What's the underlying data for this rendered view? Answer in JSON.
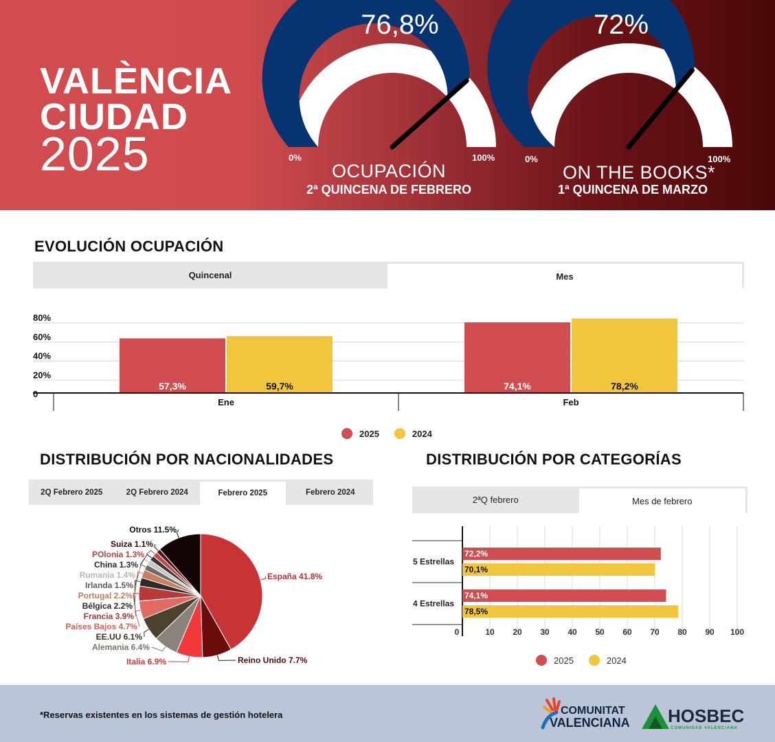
{
  "header": {
    "title_line1": "VALÈNCIA",
    "title_line2": "CIUDAD",
    "title_year": "2025"
  },
  "gauges": [
    {
      "value_label": "76,8%",
      "value": 76.8,
      "min_label": "0%",
      "max_label": "100%",
      "title": "OCUPACIÓN",
      "subtitle": "2ª QUINCENA DE FEBRERO"
    },
    {
      "value_label": "72%",
      "value": 72,
      "min_label": "0%",
      "max_label": "100%",
      "title": "ON THE BOOKS*",
      "subtitle": "1ª QUINCENA DE MARZO"
    }
  ],
  "colors": {
    "y2025": "#d14d50",
    "y2024": "#f2c63c",
    "gauge_fill": "#053470"
  },
  "evolucion": {
    "title": "EVOLUCIÓN OCUPACIÓN",
    "tabs": [
      "Quincenal",
      "Mes"
    ],
    "active_tab": "Mes",
    "legend": [
      "2025",
      "2024"
    ]
  },
  "nacionalidades": {
    "title": "DISTRIBUCIÓN POR NACIONALIDADES",
    "tabs": [
      "2Q Febrero 2025",
      "2Q Febrero 2024",
      "Febrero 2025",
      "Febrero 2024"
    ],
    "active_tab": "Febrero 2025"
  },
  "categorias": {
    "title": "DISTRIBUCIÓN POR CATEGORÍAS",
    "tabs": [
      "2ªQ febrero",
      "Mes de febrero"
    ],
    "active_tab": "Mes de febrero",
    "legend": [
      "2025",
      "2024"
    ]
  },
  "footer": {
    "note": "*Reservas existentes en los sistemas de gestión hotelera"
  },
  "logos": {
    "cv_line1": "COMUNITAT",
    "cv_line2": "VALENCIANA",
    "hosbec_name": "HOSBEC",
    "hosbec_sub": "COMUNIDAD VALENCIANA"
  },
  "chart_data": [
    {
      "type": "bar",
      "title": "EVOLUCIÓN OCUPACIÓN",
      "categories": [
        "Ene",
        "Feb"
      ],
      "series": [
        {
          "name": "2025",
          "values": [
            57.3,
            74.1
          ],
          "labels": [
            "57,3%",
            "74,1%"
          ]
        },
        {
          "name": "2024",
          "values": [
            59.7,
            78.2
          ],
          "labels": [
            "59,7%",
            "78,2%"
          ]
        }
      ],
      "y_ticks": [
        "0",
        "20%",
        "40%",
        "60%",
        "80%"
      ],
      "ylim": [
        0,
        80
      ],
      "grid": true,
      "legend_position": "bottom"
    },
    {
      "type": "pie",
      "title": "DISTRIBUCIÓN POR NACIONALIDADES",
      "slices": [
        {
          "label": "España",
          "value": 41.8,
          "text": "España 41.8%",
          "color": "#c83336",
          "label_color": "#c62d30"
        },
        {
          "label": "Reino Unido",
          "value": 7.7,
          "text": "Reino Unido 7.7%",
          "color": "#6b0d0d",
          "label_color": "#5a0a0a"
        },
        {
          "label": "Italia",
          "value": 6.9,
          "text": "Italia 6.9%",
          "color": "#f2383b",
          "label_color": "#e53234"
        },
        {
          "label": "Alemania",
          "value": 6.4,
          "text": "Alemania 6.4%",
          "color": "#8a837c",
          "label_color": "#7a746e"
        },
        {
          "label": "EE.UU",
          "value": 6.1,
          "text": "EE.UU 6.1%",
          "color": "#4d4230",
          "label_color": "#3d3322"
        },
        {
          "label": "Países Bajos",
          "value": 4.7,
          "text": "Países Bajos 4.7%",
          "color": "#e06a64",
          "label_color": "#d8605a"
        },
        {
          "label": "Francia",
          "value": 3.9,
          "text": "Francia 3.9%",
          "color": "#b73a3a",
          "label_color": "#b23434"
        },
        {
          "label": "Bélgica",
          "value": 2.2,
          "text": "Bélgica 2.2%",
          "color": "#2f2b2b",
          "label_color": "#2b2727"
        },
        {
          "label": "Portugal",
          "value": 2.2,
          "text": "Portugal 2.2%",
          "color": "#c9805e",
          "label_color": "#c47a58"
        },
        {
          "label": "Irlanda",
          "value": 1.5,
          "text": "Irlanda 1.5%",
          "color": "#6f6b67",
          "label_color": "#5f5b57"
        },
        {
          "label": "Rumania",
          "value": 1.4,
          "text": "Rumania 1.4%",
          "color": "#c9c6c3",
          "label_color": "#b8b5b2"
        },
        {
          "label": "China",
          "value": 1.3,
          "text": "China 1.3%",
          "color": "#3a3434",
          "label_color": "#2e2a2a"
        },
        {
          "label": "POlonia",
          "value": 1.3,
          "text": "POlonia 1.3%",
          "color": "#c04a4a",
          "label_color": "#bb4343"
        },
        {
          "label": "Suiza",
          "value": 1.1,
          "text": "Suiza 1.1%",
          "color": "#5a1010",
          "label_color": "#3a0808"
        },
        {
          "label": "Otros",
          "value": 11.5,
          "text": "Otros 11.5%",
          "color": "#150404",
          "label_color": "#111111"
        }
      ]
    },
    {
      "type": "bar",
      "orientation": "horizontal",
      "title": "DISTRIBUCIÓN POR CATEGORÍAS",
      "categories": [
        "5 Estrellas",
        "4 Estrellas"
      ],
      "series": [
        {
          "name": "2025",
          "values": [
            72.2,
            74.1
          ],
          "labels": [
            "72,2%",
            "74,1%"
          ]
        },
        {
          "name": "2024",
          "values": [
            70.1,
            78.5
          ],
          "labels": [
            "70,1%",
            "78,5%"
          ]
        }
      ],
      "x_ticks": [
        "0",
        "10",
        "20",
        "30",
        "40",
        "50",
        "60",
        "70",
        "80",
        "90",
        "100"
      ],
      "xlim": [
        0,
        100
      ],
      "grid": true,
      "legend_position": "bottom"
    }
  ]
}
